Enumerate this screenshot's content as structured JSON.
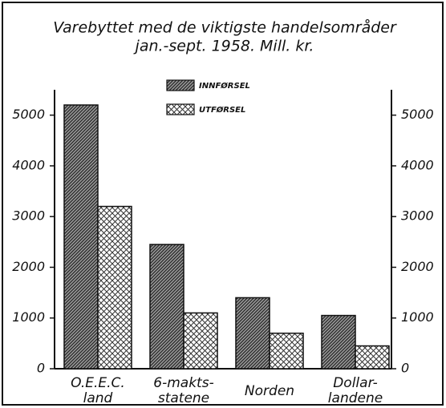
{
  "chart_data": {
    "type": "bar",
    "title": [
      "Varebyttet med de viktigste handelsområder",
      "jan.-sept. 1958. Mill. kr."
    ],
    "categories": [
      [
        "O.E.E.C.",
        "land"
      ],
      [
        "6-makts-",
        "statene"
      ],
      [
        "Norden"
      ],
      [
        "Dollar-",
        "landene"
      ]
    ],
    "series": [
      {
        "name": "INNFØRSEL",
        "color": "#333333",
        "pattern": "hatch",
        "values": [
          5200,
          2450,
          1400,
          1050
        ]
      },
      {
        "name": "UTFØRSEL",
        "color": "#333333",
        "pattern": "crosshatch",
        "values": [
          3200,
          1100,
          700,
          450
        ]
      }
    ],
    "ylim": [
      0,
      5500
    ],
    "yticks": [
      0,
      1000,
      2000,
      3000,
      4000,
      5000
    ],
    "right_axis": true,
    "grid": false
  }
}
